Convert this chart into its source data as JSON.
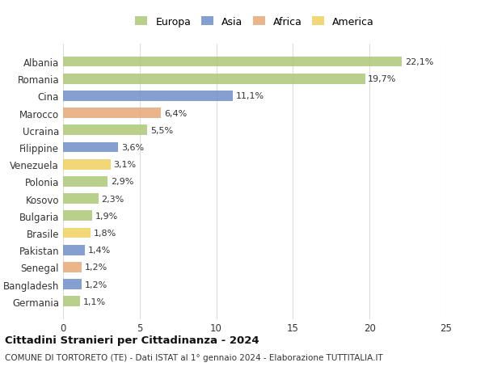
{
  "countries": [
    "Albania",
    "Romania",
    "Cina",
    "Marocco",
    "Ucraina",
    "Filippine",
    "Venezuela",
    "Polonia",
    "Kosovo",
    "Bulgaria",
    "Brasile",
    "Pakistan",
    "Senegal",
    "Bangladesh",
    "Germania"
  ],
  "values": [
    22.1,
    19.7,
    11.1,
    6.4,
    5.5,
    3.6,
    3.1,
    2.9,
    2.3,
    1.9,
    1.8,
    1.4,
    1.2,
    1.2,
    1.1
  ],
  "labels": [
    "22,1%",
    "19,7%",
    "11,1%",
    "6,4%",
    "5,5%",
    "3,6%",
    "3,1%",
    "2,9%",
    "2,3%",
    "1,9%",
    "1,8%",
    "1,4%",
    "1,2%",
    "1,2%",
    "1,1%"
  ],
  "continents": [
    "Europa",
    "Europa",
    "Asia",
    "Africa",
    "Europa",
    "Asia",
    "America",
    "Europa",
    "Europa",
    "Europa",
    "America",
    "Asia",
    "Africa",
    "Asia",
    "Europa"
  ],
  "colors": {
    "Europa": "#adc878",
    "Asia": "#7090c8",
    "Africa": "#e8a878",
    "America": "#f0d060"
  },
  "legend_order": [
    "Europa",
    "Asia",
    "Africa",
    "America"
  ],
  "xlim": [
    0,
    25
  ],
  "xticks": [
    0,
    5,
    10,
    15,
    20,
    25
  ],
  "title": "Cittadini Stranieri per Cittadinanza - 2024",
  "subtitle": "COMUNE DI TORTORETO (TE) - Dati ISTAT al 1° gennaio 2024 - Elaborazione TUTTITALIA.IT",
  "background_color": "#ffffff",
  "grid_color": "#dddddd"
}
